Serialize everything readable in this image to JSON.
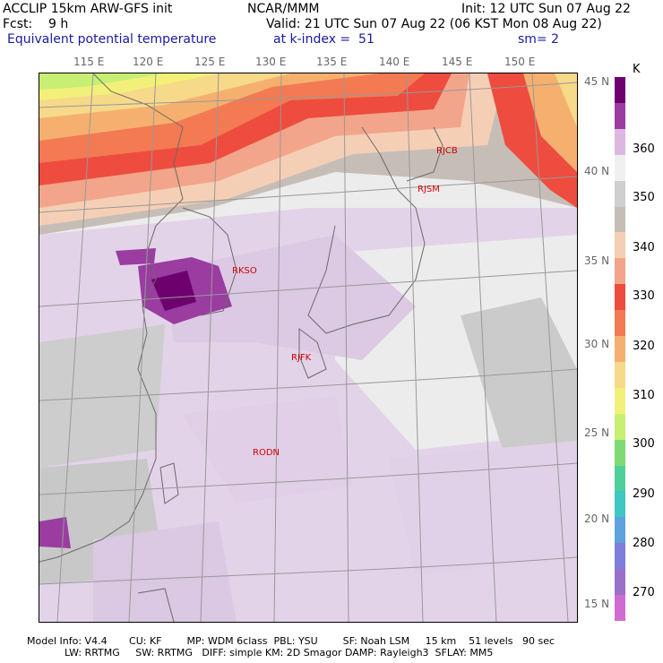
{
  "header": {
    "left1": "ACCLIP 15km ARW-GFS init",
    "center1": "NCAR/MMM",
    "right1": "Init: 12 UTC Sun 07 Aug 22",
    "left2": "Fcst:    9 h",
    "center2": "Valid: 21 UTC Sun 07 Aug 22 (06 KST Mon 08 Aug 22)",
    "field": "Equivalent potential temperature",
    "kindex": "at k-index =  51",
    "sm": "sm= 2"
  },
  "longitude_labels": [
    "115 E",
    "120 E",
    "125 E",
    "130 E",
    "135 E",
    "140 E",
    "145 E",
    "150 E"
  ],
  "latitude_labels": [
    "45 N",
    "40 N",
    "35 N",
    "30 N",
    "25 N",
    "20 N",
    "15 N"
  ],
  "stations": [
    "RJCB",
    "RJSM",
    "RKSO",
    "RJFK",
    "RODN"
  ],
  "legend": {
    "unit": "K",
    "labels": [
      "360",
      "350",
      "340",
      "330",
      "320",
      "310",
      "300",
      "290",
      "280",
      "270"
    ],
    "colors": [
      "#6e006e",
      "#9a3ca0",
      "#dcb8e0",
      "#f0f0f0",
      "#cfcfcf",
      "#c7bdb7",
      "#f5cfb5",
      "#f2a58a",
      "#ee4c3e",
      "#f37a52",
      "#f5b070",
      "#f7d98a",
      "#f3f07a",
      "#c6ef74",
      "#7edb74",
      "#4fcf9a",
      "#3fc7c4",
      "#5ea3dd",
      "#7f7edb",
      "#9b70c9",
      "#d06bd0"
    ]
  },
  "footer": {
    "line1": "Model Info: V4.4       CU: KF        MP: WDM 6class  PBL: YSU        SF: Noah LSM     15 km    51 levels   90 sec",
    "line2": "LW: RRTMG     SW: RRTMG   DIFF: simple KM: 2D Smagor DAMP: Rayleigh3  SFLAY: MM5"
  }
}
